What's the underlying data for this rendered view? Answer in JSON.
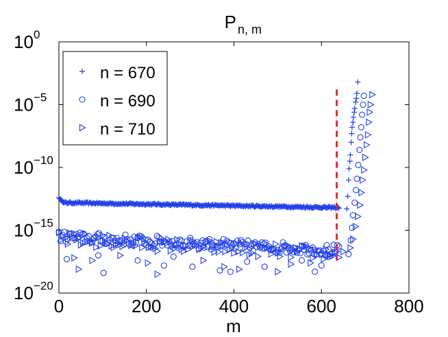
{
  "chart_data": {
    "type": "scatter",
    "title": {
      "main": "P",
      "subscript": "n, m"
    },
    "xlabel": "m",
    "ylabel": "",
    "xlim": [
      0,
      800
    ],
    "ylim_log10": [
      -20,
      0
    ],
    "y_scale": "log",
    "xticks": [
      {
        "value": 0,
        "label": "0"
      },
      {
        "value": 200,
        "label": "200"
      },
      {
        "value": 400,
        "label": "400"
      },
      {
        "value": 600,
        "label": "600"
      },
      {
        "value": 800,
        "label": "800"
      }
    ],
    "yticks": [
      {
        "exp": 0,
        "base": "10",
        "sup": "0"
      },
      {
        "exp": -5,
        "base": "10",
        "sup": "−5"
      },
      {
        "exp": -10,
        "base": "10",
        "sup": "−10"
      },
      {
        "exp": -15,
        "base": "10",
        "sup": "−15"
      },
      {
        "exp": -20,
        "base": "10",
        "sup": "−20"
      }
    ],
    "legend": {
      "position": "top-left",
      "entries": [
        {
          "marker": "plus",
          "label": "n = 670"
        },
        {
          "marker": "circle",
          "label": "n = 690"
        },
        {
          "marker": "triangle-right",
          "label": "n = 710"
        }
      ]
    },
    "vline": {
      "x": 635,
      "y_range_log10": [
        -17.5,
        -3.8
      ],
      "color": "#e8252e",
      "style": "dashed"
    },
    "series": [
      {
        "name": "n = 670",
        "marker": "plus",
        "color": "#1f3ee8",
        "bands": [
          {
            "x_range": [
              0,
              10
            ],
            "y_log10": [
              -12.4,
              -12.8
            ]
          },
          {
            "x_range": [
              10,
              640
            ],
            "y_log10": [
              -12.8,
              -13.2
            ],
            "noise": 0.07
          }
        ],
        "points": [
          {
            "x": 658,
            "y_log10": -13.3
          },
          {
            "x": 660,
            "y_log10": -12.3
          },
          {
            "x": 662,
            "y_log10": -11.0
          },
          {
            "x": 663,
            "y_log10": -10.1
          },
          {
            "x": 665,
            "y_log10": -9.5
          },
          {
            "x": 666,
            "y_log10": -9.0
          },
          {
            "x": 668,
            "y_log10": -8.0
          },
          {
            "x": 669,
            "y_log10": -7.3
          },
          {
            "x": 670,
            "y_log10": -6.8
          },
          {
            "x": 672,
            "y_log10": -6.4
          },
          {
            "x": 673,
            "y_log10": -6.0
          },
          {
            "x": 675,
            "y_log10": -5.6
          },
          {
            "x": 676,
            "y_log10": -5.3
          },
          {
            "x": 678,
            "y_log10": -4.8
          },
          {
            "x": 680,
            "y_log10": -4.5
          },
          {
            "x": 681,
            "y_log10": -4.1
          },
          {
            "x": 683,
            "y_log10": -3.2
          }
        ]
      },
      {
        "name": "n = 690",
        "marker": "circle",
        "color": "#1f3ee8",
        "bands": [
          {
            "x_range": [
              0,
              640
            ],
            "y_log10": [
              -15.5,
              -16.6
            ],
            "noise": 0.45,
            "step": 4
          }
        ],
        "points": [
          {
            "x": 18,
            "y_log10": -17.3
          },
          {
            "x": 90,
            "y_log10": -17.0
          },
          {
            "x": 102,
            "y_log10": -18.4
          },
          {
            "x": 180,
            "y_log10": -17.4
          },
          {
            "x": 240,
            "y_log10": -17.8
          },
          {
            "x": 262,
            "y_log10": -17.1
          },
          {
            "x": 305,
            "y_log10": -17.9
          },
          {
            "x": 368,
            "y_log10": -18.2
          },
          {
            "x": 392,
            "y_log10": -18.3
          },
          {
            "x": 430,
            "y_log10": -17.5
          },
          {
            "x": 470,
            "y_log10": -17.9
          },
          {
            "x": 555,
            "y_log10": -17.4
          },
          {
            "x": 585,
            "y_log10": -18.3
          },
          {
            "x": 600,
            "y_log10": -17.8
          },
          {
            "x": 612,
            "y_log10": -17.0
          },
          {
            "x": 662,
            "y_log10": -16.9
          },
          {
            "x": 667,
            "y_log10": -15.8
          },
          {
            "x": 670,
            "y_log10": -14.8
          },
          {
            "x": 672,
            "y_log10": -13.8
          },
          {
            "x": 676,
            "y_log10": -12.8
          },
          {
            "x": 679,
            "y_log10": -11.8
          },
          {
            "x": 681,
            "y_log10": -10.9
          },
          {
            "x": 684,
            "y_log10": -9.8
          },
          {
            "x": 687,
            "y_log10": -8.6
          },
          {
            "x": 689,
            "y_log10": -7.6
          },
          {
            "x": 691,
            "y_log10": -6.8
          },
          {
            "x": 693,
            "y_log10": -5.8
          },
          {
            "x": 695,
            "y_log10": -5.0
          },
          {
            "x": 697,
            "y_log10": -4.3
          }
        ]
      },
      {
        "name": "n = 710",
        "marker": "triangle-right",
        "color": "#1f3ee8",
        "bands": [
          {
            "x_range": [
              0,
              640
            ],
            "y_log10": [
              -15.7,
              -16.9
            ],
            "noise": 0.55,
            "step": 5
          }
        ],
        "points": [
          {
            "x": 35,
            "y_log10": -17.2
          },
          {
            "x": 45,
            "y_log10": -18.1
          },
          {
            "x": 76,
            "y_log10": -17.4
          },
          {
            "x": 140,
            "y_log10": -17.0
          },
          {
            "x": 203,
            "y_log10": -17.6
          },
          {
            "x": 225,
            "y_log10": -18.5
          },
          {
            "x": 330,
            "y_log10": -17.4
          },
          {
            "x": 378,
            "y_log10": -17.9
          },
          {
            "x": 412,
            "y_log10": -18.1
          },
          {
            "x": 500,
            "y_log10": -18.3
          },
          {
            "x": 530,
            "y_log10": -17.7
          },
          {
            "x": 575,
            "y_log10": -17.6
          },
          {
            "x": 618,
            "y_log10": -17.0
          },
          {
            "x": 650,
            "y_log10": -16.7
          },
          {
            "x": 666,
            "y_log10": -16.4
          },
          {
            "x": 672,
            "y_log10": -15.7
          },
          {
            "x": 678,
            "y_log10": -14.7
          },
          {
            "x": 683,
            "y_log10": -13.9
          },
          {
            "x": 688,
            "y_log10": -13.0
          },
          {
            "x": 691,
            "y_log10": -12.0
          },
          {
            "x": 694,
            "y_log10": -11.0
          },
          {
            "x": 697,
            "y_log10": -10.2
          },
          {
            "x": 700,
            "y_log10": -9.2
          },
          {
            "x": 703,
            "y_log10": -8.2
          },
          {
            "x": 706,
            "y_log10": -7.4
          },
          {
            "x": 708,
            "y_log10": -6.4
          },
          {
            "x": 710,
            "y_log10": -5.6
          },
          {
            "x": 712,
            "y_log10": -5.0
          },
          {
            "x": 716,
            "y_log10": -4.2
          }
        ]
      }
    ]
  }
}
